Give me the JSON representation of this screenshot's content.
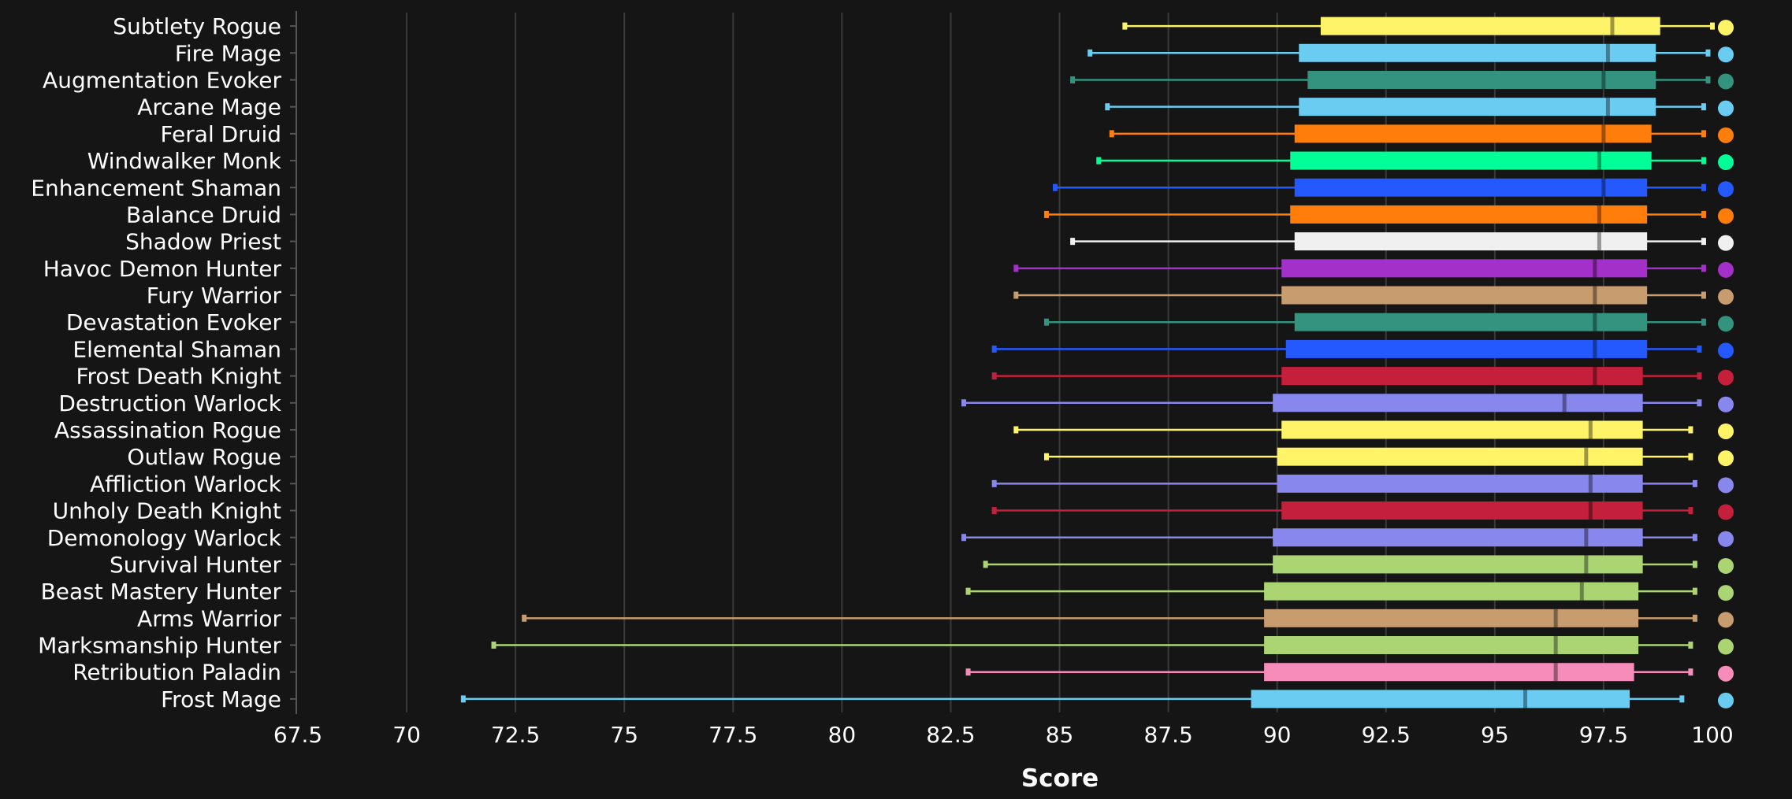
{
  "chart_data": {
    "type": "box",
    "xlabel": "Score",
    "xlim": [
      67.5,
      100
    ],
    "xticks": [
      "67.5",
      "70",
      "72.5",
      "75",
      "77.5",
      "80",
      "82.5",
      "85",
      "87.5",
      "90",
      "92.5",
      "95",
      "97.5",
      "100"
    ],
    "grid": "vertical",
    "series": [
      {
        "name": "Subtlety Rogue",
        "color": "#FFF468",
        "min": 86.5,
        "q1": 91.0,
        "median": 97.7,
        "q3": 98.8,
        "max": 100.0
      },
      {
        "name": "Fire Mage",
        "color": "#69CCF0",
        "min": 85.7,
        "q1": 90.5,
        "median": 97.6,
        "q3": 98.7,
        "max": 99.9
      },
      {
        "name": "Augmentation Evoker",
        "color": "#33937F",
        "min": 85.3,
        "q1": 90.7,
        "median": 97.5,
        "q3": 98.7,
        "max": 99.9
      },
      {
        "name": "Arcane Mage",
        "color": "#69CCF0",
        "min": 86.1,
        "q1": 90.5,
        "median": 97.6,
        "q3": 98.7,
        "max": 99.8
      },
      {
        "name": "Feral Druid",
        "color": "#FF7D0A",
        "min": 86.2,
        "q1": 90.4,
        "median": 97.5,
        "q3": 98.6,
        "max": 99.8
      },
      {
        "name": "Windwalker Monk",
        "color": "#00FF96",
        "min": 85.9,
        "q1": 90.3,
        "median": 97.4,
        "q3": 98.6,
        "max": 99.8
      },
      {
        "name": "Enhancement Shaman",
        "color": "#2459FF",
        "min": 84.9,
        "q1": 90.4,
        "median": 97.5,
        "q3": 98.5,
        "max": 99.8
      },
      {
        "name": "Balance Druid",
        "color": "#FF7D0A",
        "min": 84.7,
        "q1": 90.3,
        "median": 97.4,
        "q3": 98.5,
        "max": 99.8
      },
      {
        "name": "Shadow Priest",
        "color": "#F0F0F0",
        "min": 85.3,
        "q1": 90.4,
        "median": 97.4,
        "q3": 98.5,
        "max": 99.8
      },
      {
        "name": "Havoc Demon Hunter",
        "color": "#A330C9",
        "min": 84.0,
        "q1": 90.1,
        "median": 97.3,
        "q3": 98.5,
        "max": 99.8
      },
      {
        "name": "Fury Warrior",
        "color": "#C79C6E",
        "min": 84.0,
        "q1": 90.1,
        "median": 97.3,
        "q3": 98.5,
        "max": 99.8
      },
      {
        "name": "Devastation Evoker",
        "color": "#33937F",
        "min": 84.7,
        "q1": 90.4,
        "median": 97.3,
        "q3": 98.5,
        "max": 99.8
      },
      {
        "name": "Elemental Shaman",
        "color": "#2459FF",
        "min": 83.5,
        "q1": 90.2,
        "median": 97.3,
        "q3": 98.5,
        "max": 99.7
      },
      {
        "name": "Frost Death Knight",
        "color": "#C41F3B",
        "min": 83.5,
        "q1": 90.1,
        "median": 97.3,
        "q3": 98.4,
        "max": 99.7
      },
      {
        "name": "Destruction Warlock",
        "color": "#8787ED",
        "min": 82.8,
        "q1": 89.9,
        "median": 96.6,
        "q3": 98.4,
        "max": 99.7
      },
      {
        "name": "Assassination Rogue",
        "color": "#FFF468",
        "min": 84.0,
        "q1": 90.1,
        "median": 97.2,
        "q3": 98.4,
        "max": 99.5
      },
      {
        "name": "Outlaw Rogue",
        "color": "#FFF468",
        "min": 84.7,
        "q1": 90.0,
        "median": 97.1,
        "q3": 98.4,
        "max": 99.5
      },
      {
        "name": "Affliction Warlock",
        "color": "#8787ED",
        "min": 83.5,
        "q1": 90.0,
        "median": 97.2,
        "q3": 98.4,
        "max": 99.6
      },
      {
        "name": "Unholy Death Knight",
        "color": "#C41F3B",
        "min": 83.5,
        "q1": 90.1,
        "median": 97.2,
        "q3": 98.4,
        "max": 99.5
      },
      {
        "name": "Demonology Warlock",
        "color": "#8787ED",
        "min": 82.8,
        "q1": 89.9,
        "median": 97.1,
        "q3": 98.4,
        "max": 99.6
      },
      {
        "name": "Survival Hunter",
        "color": "#ABD473",
        "min": 83.3,
        "q1": 89.9,
        "median": 97.1,
        "q3": 98.4,
        "max": 99.6
      },
      {
        "name": "Beast Mastery Hunter",
        "color": "#ABD473",
        "min": 82.9,
        "q1": 89.7,
        "median": 97.0,
        "q3": 98.3,
        "max": 99.6
      },
      {
        "name": "Arms Warrior",
        "color": "#C79C6E",
        "min": 72.7,
        "q1": 89.7,
        "median": 96.4,
        "q3": 98.3,
        "max": 99.6
      },
      {
        "name": "Marksmanship Hunter",
        "color": "#ABD473",
        "min": 72.0,
        "q1": 89.7,
        "median": 96.4,
        "q3": 98.3,
        "max": 99.5
      },
      {
        "name": "Retribution Paladin",
        "color": "#F58CBA",
        "min": 82.9,
        "q1": 89.7,
        "median": 96.4,
        "q3": 98.2,
        "max": 99.5
      },
      {
        "name": "Frost Mage",
        "color": "#69CCF0",
        "min": 71.3,
        "q1": 89.4,
        "median": 95.7,
        "q3": 98.1,
        "max": 99.3
      }
    ]
  }
}
